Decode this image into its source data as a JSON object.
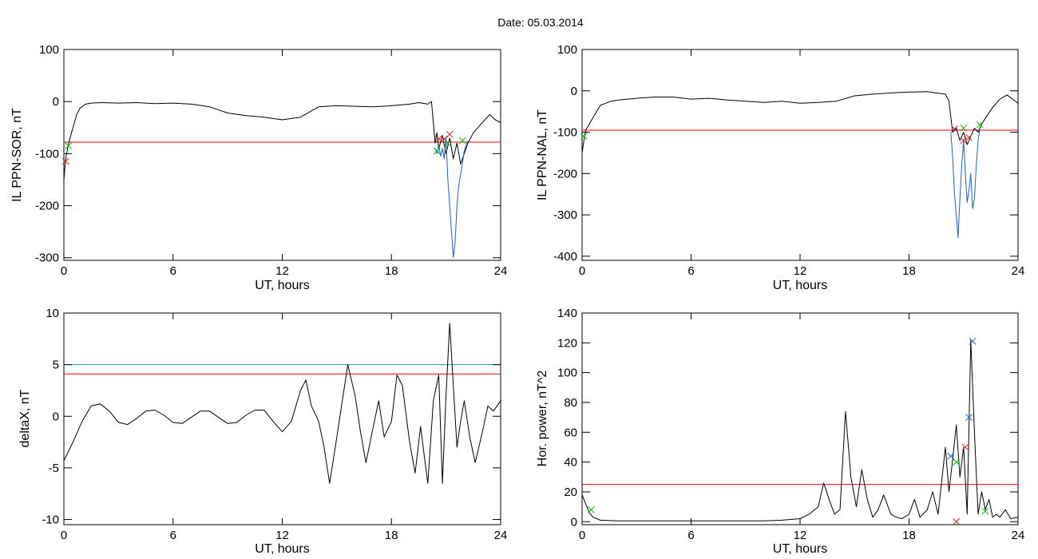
{
  "figure": {
    "title": "Date:  05.03.2014"
  },
  "chart_data": [
    {
      "id": "ppn-sor",
      "type": "line",
      "xlabel": "UT, hours",
      "ylabel": "IL PPN-SOR, nT",
      "xlim": [
        0,
        24
      ],
      "ylim": [
        -305,
        100
      ],
      "xticks": [
        0,
        6,
        12,
        18,
        24
      ],
      "yticks": [
        100,
        0,
        -100,
        -200,
        -300
      ],
      "grid": false,
      "hlines": [
        {
          "y": -78,
          "color": "#ff0000"
        }
      ],
      "series": [
        {
          "color": "#000000",
          "x": [
            0,
            0.1,
            0.2,
            0.3,
            0.5,
            0.7,
            0.9,
            1.2,
            1.5,
            2,
            3,
            4,
            5,
            6,
            7,
            8,
            9,
            10,
            11,
            12,
            13,
            13.5,
            14,
            15,
            16,
            17,
            18,
            19,
            19.5,
            20,
            20.2,
            20.4,
            20.5,
            20.6,
            20.8,
            21.0,
            21.2,
            21.4,
            21.6,
            21.8,
            22.0,
            22.2,
            22.5,
            23.0,
            23.4,
            23.7,
            24
          ],
          "y": [
            -150,
            -110,
            -90,
            -75,
            -50,
            -25,
            -12,
            -5,
            -3,
            -2,
            -3,
            -2,
            -4,
            -3,
            -5,
            -10,
            -22,
            -27,
            -30,
            -35,
            -30,
            -20,
            -10,
            -8,
            -9,
            -10,
            -8,
            -5,
            -2,
            -5,
            0,
            -80,
            -60,
            -90,
            -65,
            -100,
            -70,
            -110,
            -80,
            -120,
            -100,
            -80,
            -60,
            -40,
            -25,
            -35,
            -40
          ]
        },
        {
          "color": "#1f5fd6",
          "x": [
            20.4,
            20.5,
            20.6,
            20.7,
            20.8,
            20.9,
            21.0,
            21.1,
            21.2,
            21.3,
            21.4,
            21.5,
            21.6,
            21.7,
            21.8,
            21.9,
            22.0,
            22.1,
            22.2
          ],
          "y": [
            -90,
            -100,
            -85,
            -105,
            -90,
            -110,
            -70,
            -150,
            -200,
            -250,
            -299,
            -270,
            -200,
            -160,
            -140,
            -120,
            -95,
            -85,
            -75
          ]
        }
      ],
      "markers": [
        {
          "x": 0.1,
          "y": -115,
          "color": "#d62828"
        },
        {
          "x": 0.25,
          "y": -85,
          "color": "#00c000"
        },
        {
          "x": 20.6,
          "y": -72,
          "color": "#d62828"
        },
        {
          "x": 20.9,
          "y": -72,
          "color": "#d62828"
        },
        {
          "x": 21.2,
          "y": -63,
          "color": "#d62828"
        },
        {
          "x": 20.5,
          "y": -95,
          "color": "#00c000"
        },
        {
          "x": 21.1,
          "y": -80,
          "color": "#00c000"
        },
        {
          "x": 21.9,
          "y": -75,
          "color": "#00c000"
        }
      ]
    },
    {
      "id": "ppn-nal",
      "type": "line",
      "xlabel": "UT, hours",
      "ylabel": "IL PPN-NAL, nT",
      "xlim": [
        0,
        24
      ],
      "ylim": [
        -410,
        100
      ],
      "xticks": [
        0,
        6,
        12,
        18,
        24
      ],
      "yticks": [
        100,
        0,
        -100,
        -200,
        -300,
        -400
      ],
      "grid": false,
      "hlines": [
        {
          "y": -95,
          "color": "#ff0000"
        }
      ],
      "series": [
        {
          "color": "#000000",
          "x": [
            0,
            0.1,
            0.2,
            0.4,
            0.6,
            0.8,
            1.0,
            1.3,
            1.6,
            2,
            3,
            4,
            5,
            6,
            7,
            8,
            9,
            10,
            11,
            12,
            13,
            14,
            15,
            16,
            17,
            18,
            19,
            19.5,
            20.0,
            20.2,
            20.4,
            20.6,
            20.8,
            21.0,
            21.2,
            21.4,
            21.6,
            21.8,
            22.0,
            22.3,
            22.6,
            23.0,
            23.4,
            23.7,
            24
          ],
          "y": [
            -150,
            -120,
            -95,
            -80,
            -65,
            -50,
            -35,
            -30,
            -25,
            -22,
            -18,
            -15,
            -15,
            -20,
            -18,
            -22,
            -25,
            -28,
            -25,
            -30,
            -28,
            -25,
            -12,
            -8,
            -5,
            -3,
            -2,
            -5,
            -8,
            -25,
            -100,
            -90,
            -120,
            -100,
            -130,
            -110,
            -90,
            -100,
            -80,
            -60,
            -40,
            -20,
            -10,
            -20,
            -30
          ]
        },
        {
          "color": "#1f5fd6",
          "x": [
            20.3,
            20.4,
            20.5,
            20.6,
            20.7,
            20.8,
            20.9,
            21.0,
            21.1,
            21.2,
            21.3,
            21.4,
            21.5,
            21.6,
            21.7,
            21.8,
            21.9
          ],
          "y": [
            -100,
            -160,
            -250,
            -300,
            -355,
            -260,
            -180,
            -120,
            -200,
            -270,
            -240,
            -200,
            -285,
            -260,
            -180,
            -120,
            -90
          ]
        }
      ],
      "markers": [
        {
          "x": 0.1,
          "y": -110,
          "color": "#00c000"
        },
        {
          "x": 20.5,
          "y": -92,
          "color": "#d62828"
        },
        {
          "x": 21.0,
          "y": -120,
          "color": "#d62828"
        },
        {
          "x": 21.3,
          "y": -113,
          "color": "#d62828"
        },
        {
          "x": 21.0,
          "y": -90,
          "color": "#00c000"
        },
        {
          "x": 21.9,
          "y": -82,
          "color": "#00c000"
        }
      ]
    },
    {
      "id": "deltax",
      "type": "line",
      "xlabel": "UT, hours",
      "ylabel": "deltaX, nT",
      "xlim": [
        0,
        24
      ],
      "ylim": [
        -10.5,
        10
      ],
      "xticks": [
        0,
        6,
        12,
        18,
        24
      ],
      "yticks": [
        10,
        5,
        0,
        -5,
        -10
      ],
      "grid": false,
      "hlines": [
        {
          "y": 5,
          "color": "#1a9a9a"
        },
        {
          "y": 4.1,
          "color": "#ff0000"
        }
      ],
      "series": [
        {
          "color": "#000000",
          "x": [
            0,
            0.5,
            1.0,
            1.5,
            2.0,
            2.5,
            3.0,
            3.5,
            4.0,
            4.5,
            5.0,
            5.5,
            6.0,
            6.5,
            7.0,
            7.5,
            8.0,
            8.5,
            9.0,
            9.5,
            10.0,
            10.5,
            11.0,
            11.5,
            12.0,
            12.5,
            13.0,
            13.3,
            13.6,
            14.0,
            14.3,
            14.6,
            15.0,
            15.3,
            15.6,
            16.0,
            16.3,
            16.6,
            17.0,
            17.3,
            17.6,
            18.0,
            18.3,
            18.6,
            19.0,
            19.3,
            19.6,
            20.0,
            20.3,
            20.6,
            20.8,
            21.0,
            21.2,
            21.4,
            21.6,
            21.8,
            22.0,
            22.3,
            22.6,
            23.0,
            23.3,
            23.6,
            24.0
          ],
          "y": [
            -4.3,
            -2.5,
            -0.5,
            1.0,
            1.2,
            0.5,
            -0.6,
            -0.8,
            -0.2,
            0.5,
            0.6,
            0.1,
            -0.6,
            -0.7,
            -0.1,
            0.5,
            0.5,
            -0.1,
            -0.7,
            -0.6,
            0.1,
            0.6,
            0.6,
            -0.5,
            -1.5,
            -0.5,
            2.5,
            3.5,
            1.0,
            -0.5,
            -3.0,
            -6.5,
            -2.0,
            1.5,
            5.0,
            2.0,
            -1.5,
            -4.5,
            -1.0,
            1.5,
            -2.0,
            -0.5,
            4.0,
            3.0,
            -2.5,
            -5.5,
            -1.0,
            -6.5,
            1.5,
            4.0,
            -6.5,
            2.0,
            9.0,
            3.0,
            -3.0,
            -0.5,
            1.5,
            -2.0,
            -4.5,
            -1.5,
            1.0,
            0.5,
            1.5
          ]
        }
      ],
      "markers": []
    },
    {
      "id": "hor-power",
      "type": "line",
      "xlabel": "UT, hours",
      "ylabel": "Hor. power, nT^2",
      "xlim": [
        0,
        24
      ],
      "ylim": [
        -2,
        140
      ],
      "xticks": [
        0,
        6,
        12,
        18,
        24
      ],
      "yticks": [
        140,
        120,
        100,
        80,
        60,
        40,
        20,
        0
      ],
      "grid": false,
      "hlines": [
        {
          "y": 25,
          "color": "#ff0000"
        }
      ],
      "series": [
        {
          "color": "#000000",
          "x": [
            0,
            0.2,
            0.4,
            0.6,
            0.8,
            1.0,
            2,
            3,
            4,
            5,
            6,
            7,
            8,
            9,
            10,
            11,
            12,
            12.5,
            13.0,
            13.3,
            13.6,
            13.9,
            14.2,
            14.5,
            14.8,
            15.1,
            15.4,
            15.7,
            16.0,
            16.3,
            16.6,
            17.0,
            17.3,
            17.6,
            18.0,
            18.3,
            18.6,
            19.0,
            19.3,
            19.6,
            20.0,
            20.2,
            20.4,
            20.6,
            20.8,
            21.0,
            21.2,
            21.4,
            21.6,
            21.8,
            22.0,
            22.2,
            22.4,
            22.6,
            22.8,
            23.0,
            23.3,
            23.6,
            24.0
          ],
          "y": [
            18,
            12,
            6,
            3,
            2,
            1,
            0.5,
            0.5,
            0.5,
            0.5,
            0.5,
            0.5,
            0.5,
            0.5,
            0.5,
            1,
            2,
            5,
            10,
            26,
            15,
            5,
            8,
            74,
            30,
            10,
            35,
            15,
            3,
            8,
            18,
            5,
            3,
            2,
            5,
            15,
            3,
            8,
            20,
            5,
            50,
            20,
            42,
            65,
            30,
            50,
            5,
            122,
            60,
            5,
            20,
            8,
            15,
            3,
            5,
            3,
            8,
            2,
            3
          ]
        }
      ],
      "markers": [
        {
          "x": 0.5,
          "y": 8,
          "color": "#00c000"
        },
        {
          "x": 20.3,
          "y": 44,
          "color": "#1f5fd6"
        },
        {
          "x": 20.6,
          "y": 40,
          "color": "#00c000"
        },
        {
          "x": 20.6,
          "y": 0,
          "color": "#d62828"
        },
        {
          "x": 21.1,
          "y": 50,
          "color": "#d62828"
        },
        {
          "x": 21.3,
          "y": 70,
          "color": "#1f5fd6"
        },
        {
          "x": 21.5,
          "y": 121,
          "color": "#1f5fd6"
        },
        {
          "x": 22.2,
          "y": 7,
          "color": "#00c000"
        }
      ]
    }
  ]
}
